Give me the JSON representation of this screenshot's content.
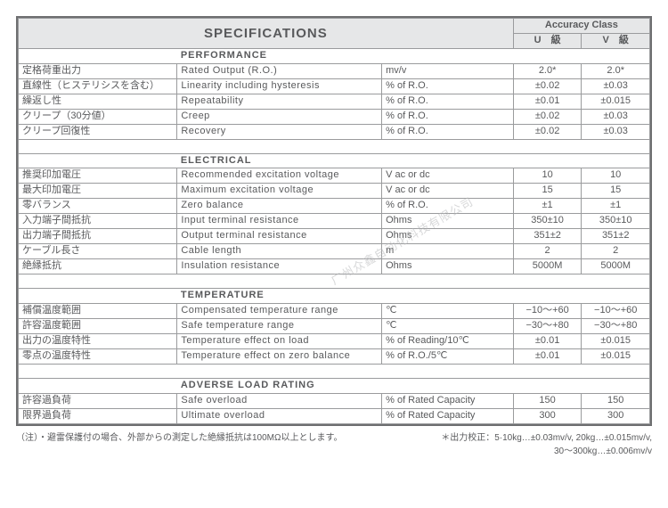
{
  "border_color": "#6e6f71",
  "cell_border_color": "#9a9b9d",
  "header_bg": "#e6e7e8",
  "text_color": "#595a5c",
  "fontsize_body": 11,
  "fontsize_title": 15,
  "fontsize_note": 10,
  "title": "SPECIFICATIONS",
  "acc_header": "Accuracy Class",
  "col_u": "U　級",
  "col_v": "V　級",
  "sections": {
    "performance": {
      "heading": "PERFORMANCE",
      "rows": [
        {
          "jp": "定格荷重出力",
          "en": "Rated  Output  (R.O.)",
          "unit": "mv/v",
          "u": "2.0*",
          "v": "2.0*"
        },
        {
          "jp": "直線性（ヒステリシスを含む）",
          "en": "Linearity  including  hysteresis",
          "unit": "%  of R.O.",
          "u": "±0.02",
          "v": "±0.03"
        },
        {
          "jp": "繰返し性",
          "en": "Repeatability",
          "unit": "%  of R.O.",
          "u": "±0.01",
          "v": "±0.015"
        },
        {
          "jp": "クリープ（30分値）",
          "en": "Creep",
          "unit": "%  of R.O.",
          "u": "±0.02",
          "v": "±0.03"
        },
        {
          "jp": "クリープ回復性",
          "en": "Recovery",
          "unit": "%  of R.O.",
          "u": "±0.02",
          "v": "±0.03"
        }
      ]
    },
    "electrical": {
      "heading": "ELECTRICAL",
      "rows": [
        {
          "jp": "推奨印加電圧",
          "en": "Recommended  excitation  voltage",
          "unit": "V ac  or  dc",
          "u": "10",
          "v": "10"
        },
        {
          "jp": "最大印加電圧",
          "en": "Maximum  excitation voltage",
          "unit": "V ac  or  dc",
          "u": "15",
          "v": "15"
        },
        {
          "jp": "零バランス",
          "en": "Zero  balance",
          "unit": "%  of R.O.",
          "u": "±1",
          "v": "±1"
        },
        {
          "jp": "入力端子間抵抗",
          "en": "Input  terminal  resistance",
          "unit": "Ohms",
          "u": "350±10",
          "v": "350±10"
        },
        {
          "jp": "出力端子間抵抗",
          "en": "Output  terminal  resistance",
          "unit": "Ohms",
          "u": "351±2",
          "v": "351±2"
        },
        {
          "jp": "ケーブル長さ",
          "en": "Cable  length",
          "unit": "m",
          "u": "2",
          "v": "2"
        },
        {
          "jp": "絶縁抵抗",
          "en": "Insulation  resistance",
          "unit": "Ohms",
          "u": "5000M",
          "v": "5000M"
        }
      ]
    },
    "temperature": {
      "heading": "TEMPERATURE",
      "rows": [
        {
          "jp": "補償温度範囲",
          "en": "Compensated  temperature  range",
          "unit": "℃",
          "u": "−10〜+60",
          "v": "−10〜+60"
        },
        {
          "jp": "許容温度範囲",
          "en": "Safe  temperature  range",
          "unit": "℃",
          "u": "−30〜+80",
          "v": "−30〜+80"
        },
        {
          "jp": "出力の温度特性",
          "en": "Temperature  effect  on  load",
          "unit": "%  of  Reading/10℃",
          "u": "±0.01",
          "v": "±0.015"
        },
        {
          "jp": "零点の温度特性",
          "en": "Temperature  effect  on  zero  balance",
          "unit": "%  of R.O./5℃",
          "u": "±0.01",
          "v": "±0.015"
        }
      ]
    },
    "adverse": {
      "heading": "ADVERSE LOAD RATING",
      "rows": [
        {
          "jp": "許容過負荷",
          "en": "Safe  overload",
          "unit": "% of Rated Capacity",
          "u": "150",
          "v": "150"
        },
        {
          "jp": "限界過負荷",
          "en": "Ultimate  overload",
          "unit": "% of Rated Capacity",
          "u": "300",
          "v": "300"
        }
      ]
    }
  },
  "note_left": "（注）・避雷保護付の場合、外部からの測定した絶縁抵抗は100MΩ以上とします。",
  "note_right1": "＊出力校正：5·10kg…±0.03mv/v, 20kg…±0.015mv/v,",
  "note_right2": "30〜300kg…±0.006mv/v",
  "watermark": "广州众鑫自动化科技有限公司"
}
